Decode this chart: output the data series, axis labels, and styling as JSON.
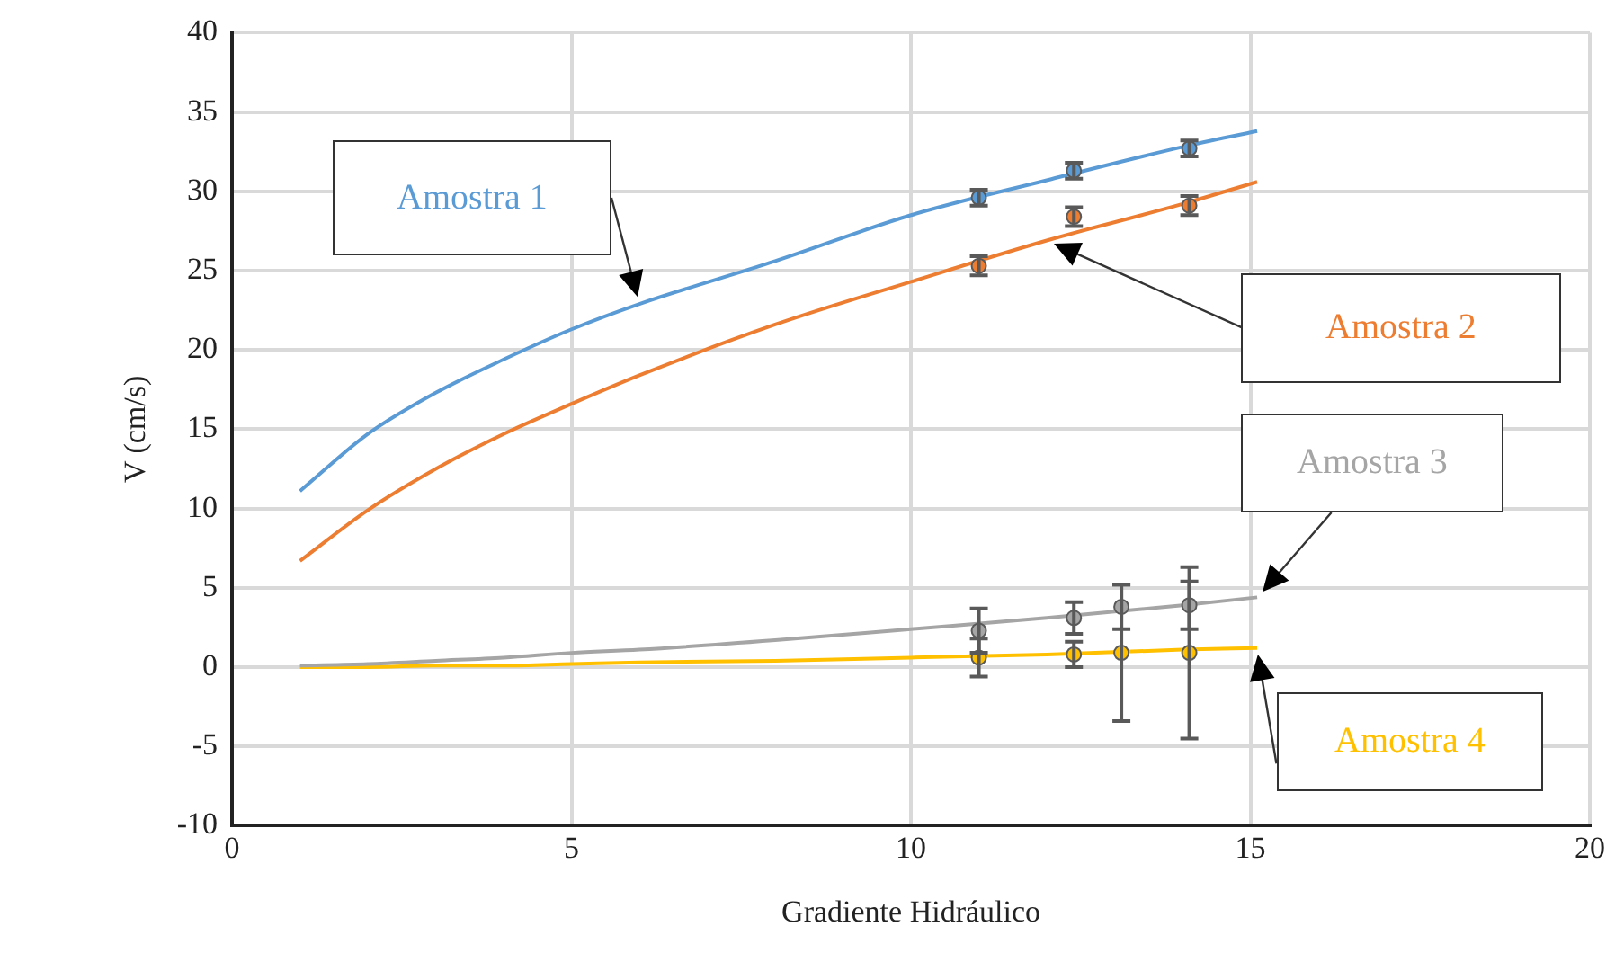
{
  "chart_data": {
    "type": "scatter",
    "xlabel": "Gradiente Hidráulico",
    "ylabel": "V (cm/s)",
    "xlim": [
      0,
      20
    ],
    "xticks": [
      0,
      5,
      10,
      15,
      20
    ],
    "ylim": [
      -10,
      40
    ],
    "yticks": [
      -10,
      -5,
      0,
      5,
      10,
      15,
      20,
      25,
      30,
      35,
      40
    ],
    "grid": true,
    "legend": false,
    "series": [
      {
        "name": "Amostra 1",
        "type": "line",
        "marker": "none",
        "color": "#5b9bd5",
        "x": [
          1,
          2,
          3,
          4,
          5,
          6,
          8,
          10,
          12,
          14,
          15.1
        ],
        "values": [
          11.1,
          14.7,
          17.3,
          19.4,
          21.3,
          22.9,
          25.6,
          28.5,
          30.7,
          32.8,
          33.8
        ]
      },
      {
        "name": "Amostra 2",
        "type": "line",
        "marker": "none",
        "color": "#ed7d31",
        "x": [
          1,
          2,
          3,
          4,
          5,
          6,
          8,
          10,
          12,
          14,
          15.1
        ],
        "values": [
          6.7,
          9.9,
          12.5,
          14.7,
          16.6,
          18.4,
          21.6,
          24.3,
          26.9,
          29.2,
          30.6
        ]
      },
      {
        "name": "Amostra 3",
        "type": "line",
        "marker": "none",
        "color": "#a5a5a5",
        "x": [
          1,
          2,
          3,
          4,
          5,
          6,
          8,
          10,
          12,
          14,
          15.1
        ],
        "values": [
          0.1,
          0.2,
          0.4,
          0.6,
          0.9,
          1.1,
          1.7,
          2.4,
          3.1,
          3.9,
          4.4
        ]
      },
      {
        "name": "Amostra 4",
        "type": "line",
        "marker": "none",
        "color": "#ffc000",
        "x": [
          1,
          2,
          3,
          4,
          5,
          6,
          8,
          10,
          12,
          14,
          15.1
        ],
        "values": [
          0,
          0,
          0.1,
          0.1,
          0.2,
          0.3,
          0.4,
          0.6,
          0.8,
          1.1,
          1.2
        ]
      },
      {
        "type": "scatter",
        "marker": "circle",
        "color": "#5b9bd5",
        "x": [
          11,
          12.4,
          14.1
        ],
        "values": [
          29.6,
          31.3,
          32.7
        ],
        "errors": [
          0.5,
          0.5,
          0.5
        ]
      },
      {
        "type": "scatter",
        "marker": "circle",
        "color": "#ed7d31",
        "x": [
          11,
          12.4,
          14.1
        ],
        "values": [
          25.3,
          28.4,
          29.1
        ],
        "errors": [
          0.6,
          0.6,
          0.6
        ]
      },
      {
        "type": "scatter",
        "marker": "circle",
        "color": "#a5a5a5",
        "x": [
          11,
          12.4,
          13.1,
          14.1
        ],
        "values": [
          2.3,
          3.1,
          3.8,
          3.9
        ],
        "errors": [
          1.4,
          1.0,
          1.4,
          1.5
        ]
      },
      {
        "type": "scatter",
        "marker": "circle",
        "color": "#ffc000",
        "x": [
          11,
          12.4,
          13.1,
          14.1
        ],
        "values": [
          0.6,
          0.8,
          0.9,
          0.9
        ],
        "errors": [
          1.2,
          0.8,
          4.3,
          5.4
        ]
      }
    ]
  }
}
